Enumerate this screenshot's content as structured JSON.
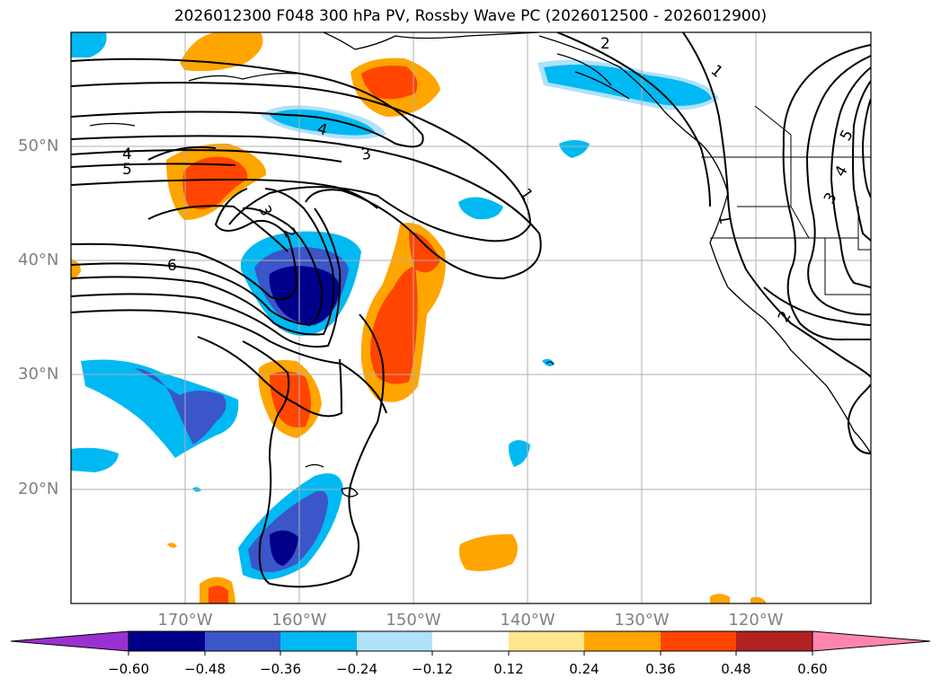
{
  "title": "2026012300 F048 300 hPa PV, Rossby Wave PC (2026012500 - 2026012900)",
  "axes": {
    "lat_labels": [
      "50°N",
      "40°N",
      "30°N",
      "20°N"
    ],
    "lon_labels": [
      "170°W",
      "160°W",
      "150°W",
      "140°W",
      "130°W",
      "120°W"
    ]
  },
  "contour_labels": [
    "2",
    "1",
    "4",
    "3",
    "4",
    "5",
    "3",
    "2",
    "1",
    "6",
    "1",
    "2",
    "3",
    "4",
    "5"
  ],
  "colorbar": {
    "tick_labels": [
      "−0.60",
      "−0.48",
      "−0.36",
      "−0.24",
      "−0.12",
      "0.12",
      "0.24",
      "0.36",
      "0.48",
      "0.60"
    ],
    "colors": [
      "#9b30d0",
      "#00008b",
      "#3a56c8",
      "#00b9f2",
      "#b0e2fa",
      "#ffffff",
      "#ffe68c",
      "#ffa500",
      "#ff4500",
      "#b22222",
      "#ff85b0"
    ]
  },
  "colors": {
    "neg_strong": "#00008b",
    "neg_mid": "#3a56c8",
    "neg_weak": "#00b9f2",
    "neg_faint": "#b0e2fa",
    "pos_faint": "#ffe68c",
    "pos_weak": "#ffa500",
    "pos_mid": "#ff4500",
    "grid": "#b0b0b0"
  }
}
